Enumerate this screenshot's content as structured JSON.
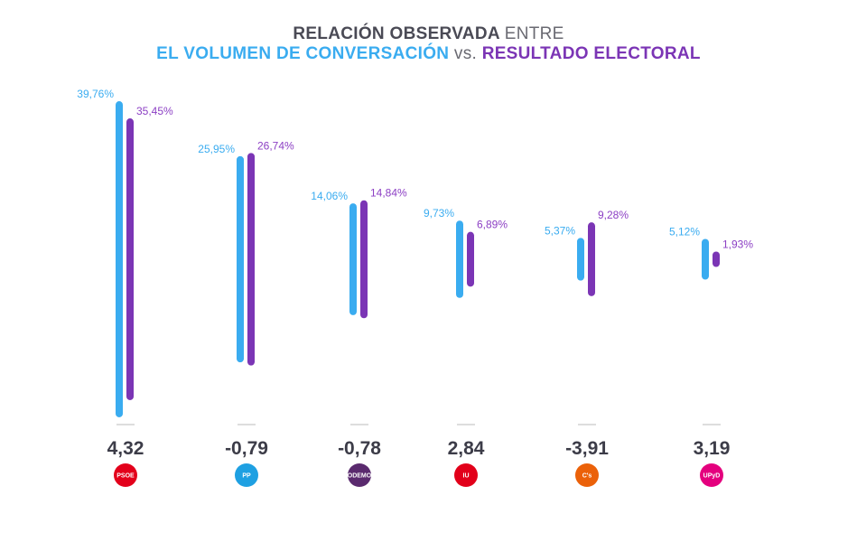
{
  "chart_data": {
    "type": "bar",
    "title": {
      "line1_bold": "RELACIÓN OBSERVADA",
      "line1_light": "ENTRE",
      "line2_blue": "EL VOLUMEN DE CONVERSACIÓN",
      "line2_vs": "vs.",
      "line2_purple": "RESULTADO ELECTORAL"
    },
    "categories": [
      "PSOE",
      "PP",
      "Podemos",
      "IU",
      "Ciudadanos",
      "UPyD"
    ],
    "series": [
      {
        "name": "Volumen de conversación",
        "color": "#3aacf0",
        "values": [
          39.76,
          25.95,
          14.06,
          9.73,
          5.37,
          5.12
        ],
        "labels": [
          "39,76%",
          "25,95%",
          "14,06%",
          "9,73%",
          "5,37%",
          "5,12%"
        ]
      },
      {
        "name": "Resultado electoral",
        "color": "#7b35b5",
        "values": [
          35.45,
          26.74,
          14.84,
          6.89,
          9.28,
          1.93
        ],
        "labels": [
          "35,45%",
          "26,74%",
          "14,84%",
          "6,89%",
          "9,28%",
          "1,93%"
        ]
      }
    ],
    "differences": [
      "4,32",
      "-0,79",
      "-0,78",
      "2,84",
      "-3,91",
      "3,19"
    ],
    "logos": [
      {
        "text": "PSOE",
        "color": "#e3001b"
      },
      {
        "text": "PP",
        "color": "#1ea0e2"
      },
      {
        "text": "PODEMOS",
        "color": "#5a2a6e"
      },
      {
        "text": "IU",
        "color": "#e2001a"
      },
      {
        "text": "C's",
        "color": "#eb6109"
      },
      {
        "text": "UPyD",
        "color": "#e4007e"
      }
    ]
  }
}
